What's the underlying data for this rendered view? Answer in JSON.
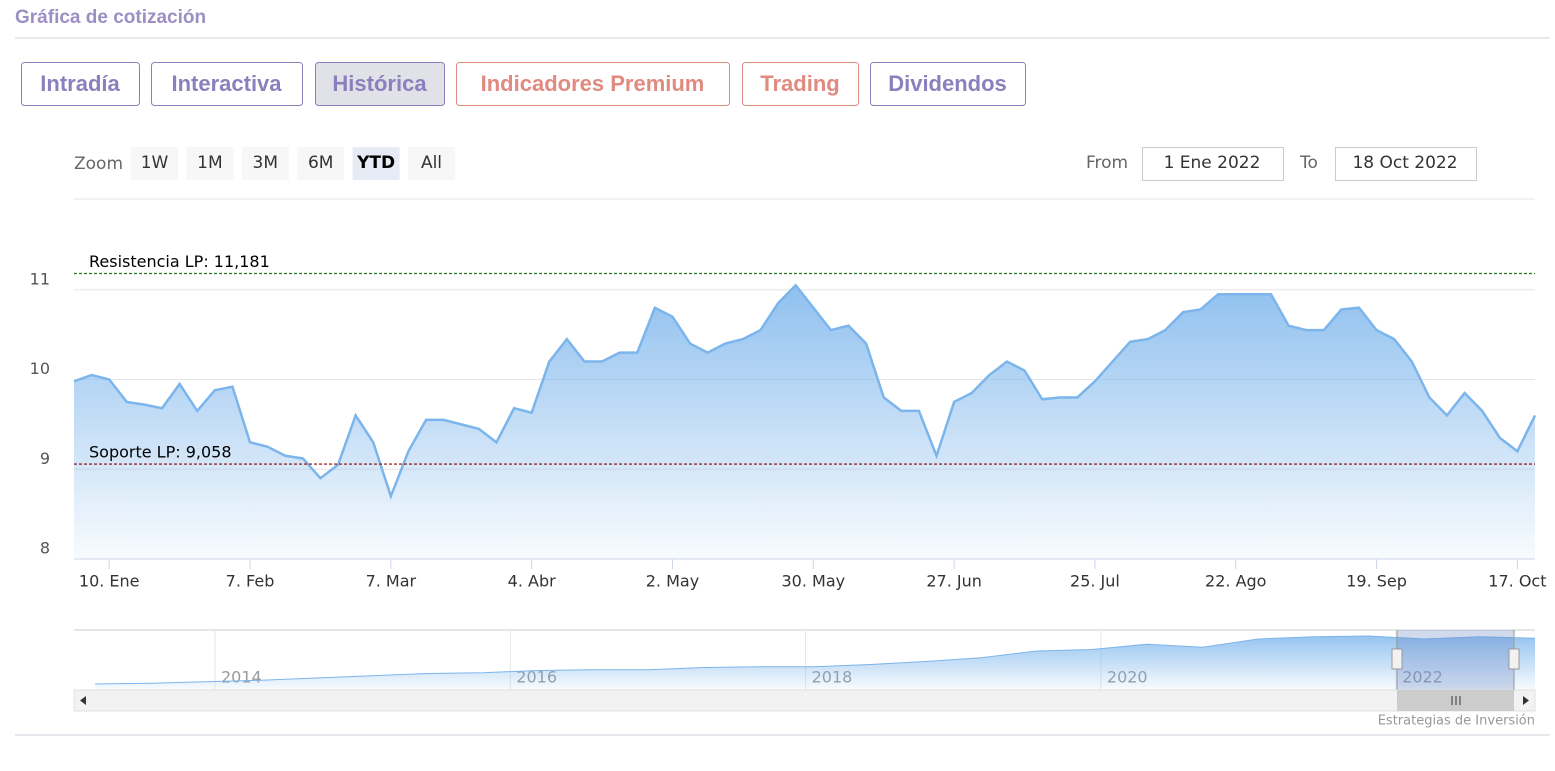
{
  "header": {
    "title": "Gráfica de cotización"
  },
  "tabs": [
    {
      "label": "Intradía",
      "color": "#8b80bd"
    },
    {
      "label": "Interactiva",
      "color": "#8b80bd"
    },
    {
      "label": "Histórica",
      "color": "#8b80bd",
      "active": true
    },
    {
      "label": "Indicadores Premium",
      "color": "#e08a80"
    },
    {
      "label": "Trading",
      "color": "#e08a80"
    },
    {
      "label": "Dividendos",
      "color": "#8b80bd"
    }
  ],
  "range_selector": {
    "label": "Zoom",
    "buttons": [
      {
        "label": "1W"
      },
      {
        "label": "1M"
      },
      {
        "label": "3M"
      },
      {
        "label": "6M"
      },
      {
        "label": "YTD",
        "selected": true
      },
      {
        "label": "All"
      }
    ]
  },
  "date_range": {
    "from_label": "From",
    "from": "1 Ene 2022",
    "to_label": "To",
    "to": "18 Oct 2022"
  },
  "chart_data": {
    "type": "line",
    "color": "#7cb5ec",
    "categories": [
      null,
      null,
      "10. Ene",
      null,
      null,
      null,
      null,
      null,
      null,
      null,
      "7. Feb",
      null,
      null,
      null,
      null,
      null,
      null,
      null,
      "7. Mar",
      null,
      null,
      null,
      null,
      null,
      null,
      null,
      "4. Abr",
      null,
      null,
      null,
      null,
      null,
      null,
      null,
      "2. May",
      null,
      null,
      null,
      null,
      null,
      null,
      null,
      "30. May",
      null,
      null,
      null,
      null,
      null,
      null,
      null,
      "27. Jun",
      null,
      null,
      null,
      null,
      null,
      null,
      null,
      "25. Jul",
      null,
      null,
      null,
      null,
      null,
      null,
      null,
      "22. Ago",
      null,
      null,
      null,
      null,
      null,
      null,
      null,
      "19. Sep",
      null,
      null,
      null,
      null,
      null,
      null,
      null,
      "17. Oct",
      null
    ],
    "values": [
      9.98,
      10.05,
      10.0,
      9.75,
      9.72,
      9.68,
      9.95,
      9.65,
      9.88,
      9.92,
      9.3,
      9.25,
      9.15,
      9.12,
      8.9,
      9.05,
      9.6,
      9.3,
      8.7,
      9.2,
      9.55,
      9.55,
      9.5,
      9.45,
      9.3,
      9.68,
      9.63,
      10.2,
      10.45,
      10.2,
      10.2,
      10.3,
      10.3,
      10.8,
      10.7,
      10.4,
      10.3,
      10.4,
      10.45,
      10.55,
      10.85,
      11.05,
      10.8,
      10.55,
      10.6,
      10.4,
      9.8,
      9.65,
      9.65,
      9.15,
      9.75,
      9.85,
      10.05,
      10.2,
      10.1,
      9.78,
      9.8,
      9.8,
      9.98,
      10.2,
      10.42,
      10.45,
      10.55,
      10.75,
      10.78,
      10.95,
      10.95,
      10.95,
      10.95,
      10.6,
      10.55,
      10.55,
      10.78,
      10.8,
      10.55,
      10.45,
      10.2,
      9.8,
      9.6,
      9.85,
      9.65,
      9.35,
      9.2,
      9.6
    ],
    "ylim": [
      8,
      12
    ],
    "yticks": [
      8,
      9,
      10,
      11
    ],
    "grid": true,
    "plot_lines": [
      {
        "value": 11.181,
        "label": "Resistencia LP: 11,181",
        "color": "#1f7a1f"
      },
      {
        "value": 9.058,
        "label": "Soporte LP: 9,058",
        "color": "#8b0000"
      }
    ],
    "navigator": {
      "labels": [
        "2014",
        "2016",
        "2018",
        "2020",
        "2022"
      ],
      "values": [
        4,
        4.1,
        4.3,
        4.5,
        4.8,
        5.1,
        5.4,
        5.5,
        5.8,
        5.9,
        5.9,
        6.2,
        6.3,
        6.3,
        6.6,
        7,
        7.5,
        8.4,
        8.6,
        9.3,
        8.9,
        10,
        10.3,
        10.4,
        10,
        10.3,
        10.1
      ]
    },
    "credits": "Estrategias de Inversión"
  }
}
